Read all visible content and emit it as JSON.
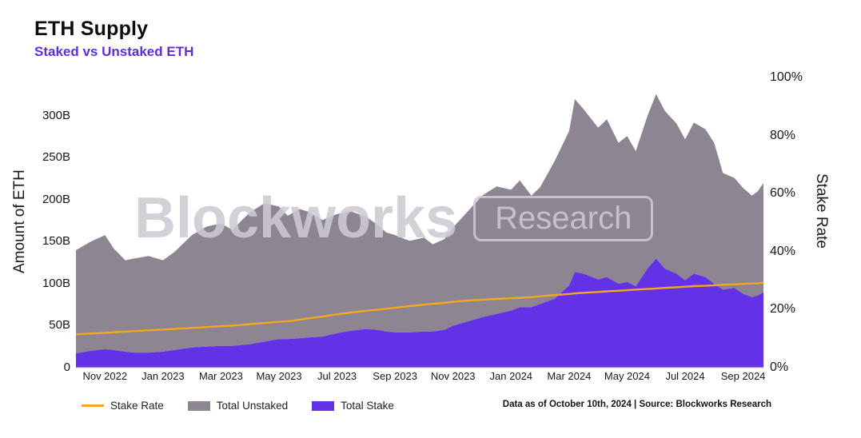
{
  "header": {
    "title": "ETH Supply",
    "subtitle": "Staked vs Unstaked ETH"
  },
  "watermark": {
    "wordmark": "Blockworks",
    "boxed": "Research"
  },
  "footer": {
    "note": "Data as of October 10th, 2024 | Source: Blockworks Research"
  },
  "legend": [
    {
      "label": "Stake Rate",
      "swatch": "line",
      "color": "#f5a623"
    },
    {
      "label": "Total Unstaked",
      "swatch": "rect",
      "color": "#8d8692"
    },
    {
      "label": "Total Stake",
      "swatch": "rect",
      "color": "#6432e6"
    }
  ],
  "colors": {
    "subtitle": "#5b2fd9",
    "stake_area": "#6432e6",
    "unstaked_area": "#8d8692",
    "rate_line": "#f5a623",
    "watermark": "#cdc9d1",
    "axis_text": "#17171a"
  },
  "chart_data": {
    "type": "area",
    "title": "ETH Supply",
    "subtitle": "Staked vs Unstaked ETH",
    "stacked": true,
    "x_unit": "months since Oct 2022",
    "x": [
      0,
      0.5,
      1,
      1.3,
      1.7,
      2,
      2.5,
      3,
      3.4,
      4,
      4.5,
      5,
      5.4,
      5.7,
      6,
      6.5,
      7,
      7.3,
      7.7,
      8,
      8.5,
      9,
      9.5,
      10,
      10.4,
      10.7,
      11,
      11.5,
      12,
      12.3,
      12.7,
      13,
      13.5,
      14,
      14.5,
      15,
      15.3,
      15.7,
      16,
      16.5,
      17,
      17.2,
      17.5,
      18,
      18.3,
      18.7,
      19,
      19.3,
      19.7,
      20,
      20.3,
      20.7,
      21,
      21.3,
      21.7,
      22,
      22.3,
      22.7,
      23,
      23.3,
      23.5,
      23.7
    ],
    "series": [
      {
        "name": "Total Stake",
        "axis": "left",
        "kind": "area",
        "color": "#6432e6",
        "values": [
          17,
          20,
          22,
          21,
          19,
          18,
          18,
          19,
          21,
          24,
          25,
          26,
          26,
          27,
          28,
          31,
          34,
          34,
          35,
          36,
          37,
          41,
          44,
          46,
          45,
          43,
          42,
          42,
          43,
          43,
          45,
          50,
          55,
          60,
          64,
          68,
          72,
          72,
          76,
          82,
          98,
          114,
          112,
          105,
          108,
          100,
          102,
          97,
          118,
          130,
          118,
          112,
          104,
          112,
          108,
          100,
          93,
          95,
          88,
          84,
          86,
          90
        ]
      },
      {
        "name": "Total Unstaked",
        "axis": "left",
        "kind": "area",
        "stacked_on": "Total Stake",
        "color": "#8d8692",
        "values": [
          123,
          130,
          136,
          121,
          109,
          112,
          115,
          109,
          117,
          134,
          143,
          146,
          138,
          148,
          157,
          165,
          158,
          147,
          154,
          150,
          139,
          142,
          142,
          134,
          125,
          118,
          116,
          109,
          112,
          104,
          108,
          117,
          131,
          145,
          152,
          144,
          151,
          133,
          139,
          164,
          184,
          206,
          196,
          181,
          188,
          168,
          174,
          161,
          182,
          196,
          188,
          179,
          168,
          180,
          176,
          168,
          139,
          131,
          126,
          121,
          124,
          130
        ]
      },
      {
        "name": "Stake Rate",
        "axis": "right",
        "kind": "line",
        "color": "#f5a623",
        "values": [
          11.5,
          11.8,
          12,
          12.2,
          12.4,
          12.6,
          12.9,
          13.1,
          13.4,
          13.7,
          14,
          14.3,
          14.5,
          14.7,
          15,
          15.4,
          15.8,
          16,
          16.5,
          17,
          17.6,
          18.4,
          19,
          19.6,
          20,
          20.3,
          20.7,
          21.2,
          21.7,
          22,
          22.3,
          22.7,
          23.1,
          23.4,
          23.7,
          23.9,
          24.1,
          24.3,
          24.6,
          25,
          25.4,
          25.6,
          25.8,
          26.1,
          26.3,
          26.5,
          26.7,
          26.9,
          27.1,
          27.3,
          27.5,
          27.7,
          27.9,
          28.1,
          28.2,
          28.4,
          28.6,
          28.7,
          28.9,
          29,
          29.1,
          29.3
        ]
      }
    ],
    "y_left": {
      "label": "Amount of ETH",
      "lim": [
        0,
        357.1
      ],
      "ticks": [
        0,
        50,
        100,
        150,
        200,
        250,
        300
      ],
      "tick_labels": [
        "0",
        "50B",
        "100B",
        "150B",
        "200B",
        "250B",
        "300B"
      ]
    },
    "y_right": {
      "label": "Stake Rate",
      "lim": [
        0,
        103.3
      ],
      "ticks": [
        0,
        20,
        40,
        60,
        80,
        100
      ],
      "tick_labels": [
        "0%",
        "20%",
        "40%",
        "60%",
        "80%",
        "100%"
      ]
    },
    "x_axis": {
      "lim": [
        0,
        23.7
      ],
      "ticks": [
        1,
        3,
        5,
        7,
        9,
        11,
        13,
        15,
        17,
        19,
        21,
        23
      ],
      "tick_labels": [
        "Nov 2022",
        "Jan 2023",
        "Mar 2023",
        "May 2023",
        "Jul 2023",
        "Sep 2023",
        "Nov 2023",
        "Jan 2024",
        "Mar 2024",
        "May 2024",
        "Jul 2024",
        "Sep 2024"
      ]
    },
    "grid": false,
    "legend_position": "bottom-left"
  }
}
